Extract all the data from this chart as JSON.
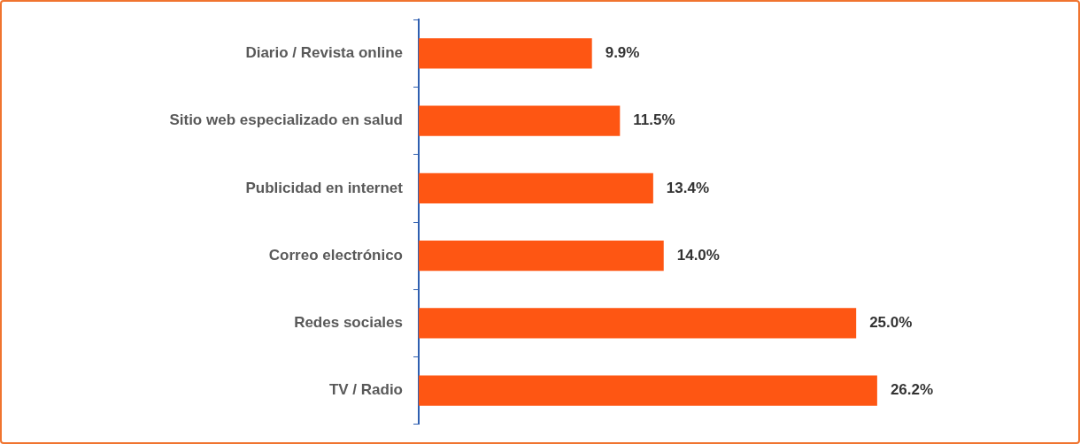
{
  "chart_data": {
    "type": "bar",
    "orientation": "horizontal",
    "categories": [
      "Diario / Revista online",
      "Sitio web especializado en salud",
      "Publicidad en internet",
      "Correo electrónico",
      "Redes sociales",
      "TV / Radio"
    ],
    "values": [
      9.9,
      11.5,
      13.4,
      14.0,
      25.0,
      26.2
    ],
    "value_labels": [
      "9.9%",
      "11.5%",
      "13.4%",
      "14.0%",
      "25.0%",
      "26.2%"
    ],
    "color": "#fe5613",
    "legend": false,
    "tick_labels": "y"
  }
}
